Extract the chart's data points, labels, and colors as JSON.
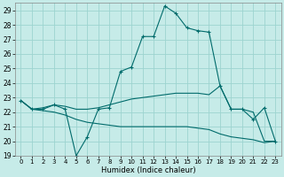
{
  "xlabel": "Humidex (Indice chaleur)",
  "xlim": [
    -0.5,
    23.5
  ],
  "ylim": [
    19,
    29.5
  ],
  "yticks": [
    19,
    20,
    21,
    22,
    23,
    24,
    25,
    26,
    27,
    28,
    29
  ],
  "xticks": [
    0,
    1,
    2,
    3,
    4,
    5,
    6,
    7,
    8,
    9,
    10,
    11,
    12,
    13,
    14,
    15,
    16,
    17,
    18,
    19,
    20,
    21,
    22,
    23
  ],
  "bg_color": "#c6ebe8",
  "grid_color": "#9dd4d0",
  "line_color": "#006b6b",
  "curve1_x": [
    0,
    1,
    2,
    3,
    4,
    5,
    6,
    7,
    8,
    9,
    10,
    11,
    12,
    13,
    14,
    15,
    16,
    17,
    18,
    19,
    20,
    21,
    22,
    23
  ],
  "curve1_y": [
    22.8,
    22.2,
    22.2,
    22.5,
    22.2,
    19.0,
    20.3,
    22.2,
    22.3,
    24.8,
    25.1,
    27.2,
    27.2,
    29.3,
    28.8,
    27.8,
    27.6,
    27.5,
    23.8,
    22.2,
    22.2,
    21.5,
    22.3,
    20.0
  ],
  "curve2_x": [
    0,
    1,
    2,
    3,
    4,
    5,
    6,
    7,
    8,
    9,
    10,
    11,
    12,
    13,
    14,
    15,
    16,
    17,
    18,
    19,
    20,
    21,
    22,
    23
  ],
  "curve2_y": [
    22.8,
    22.2,
    22.3,
    22.5,
    22.4,
    22.2,
    22.2,
    22.3,
    22.5,
    22.7,
    22.9,
    23.0,
    23.1,
    23.2,
    23.3,
    23.3,
    23.3,
    23.2,
    23.8,
    22.2,
    22.2,
    22.0,
    20.0,
    20.0
  ],
  "curve3_x": [
    0,
    1,
    2,
    3,
    4,
    5,
    6,
    7,
    8,
    9,
    10,
    11,
    12,
    13,
    14,
    15,
    16,
    17,
    18,
    19,
    20,
    21,
    22,
    23
  ],
  "curve3_y": [
    22.8,
    22.2,
    22.1,
    22.0,
    21.8,
    21.5,
    21.3,
    21.2,
    21.1,
    21.0,
    21.0,
    21.0,
    21.0,
    21.0,
    21.0,
    21.0,
    20.9,
    20.8,
    20.5,
    20.3,
    20.2,
    20.1,
    19.9,
    20.0
  ]
}
